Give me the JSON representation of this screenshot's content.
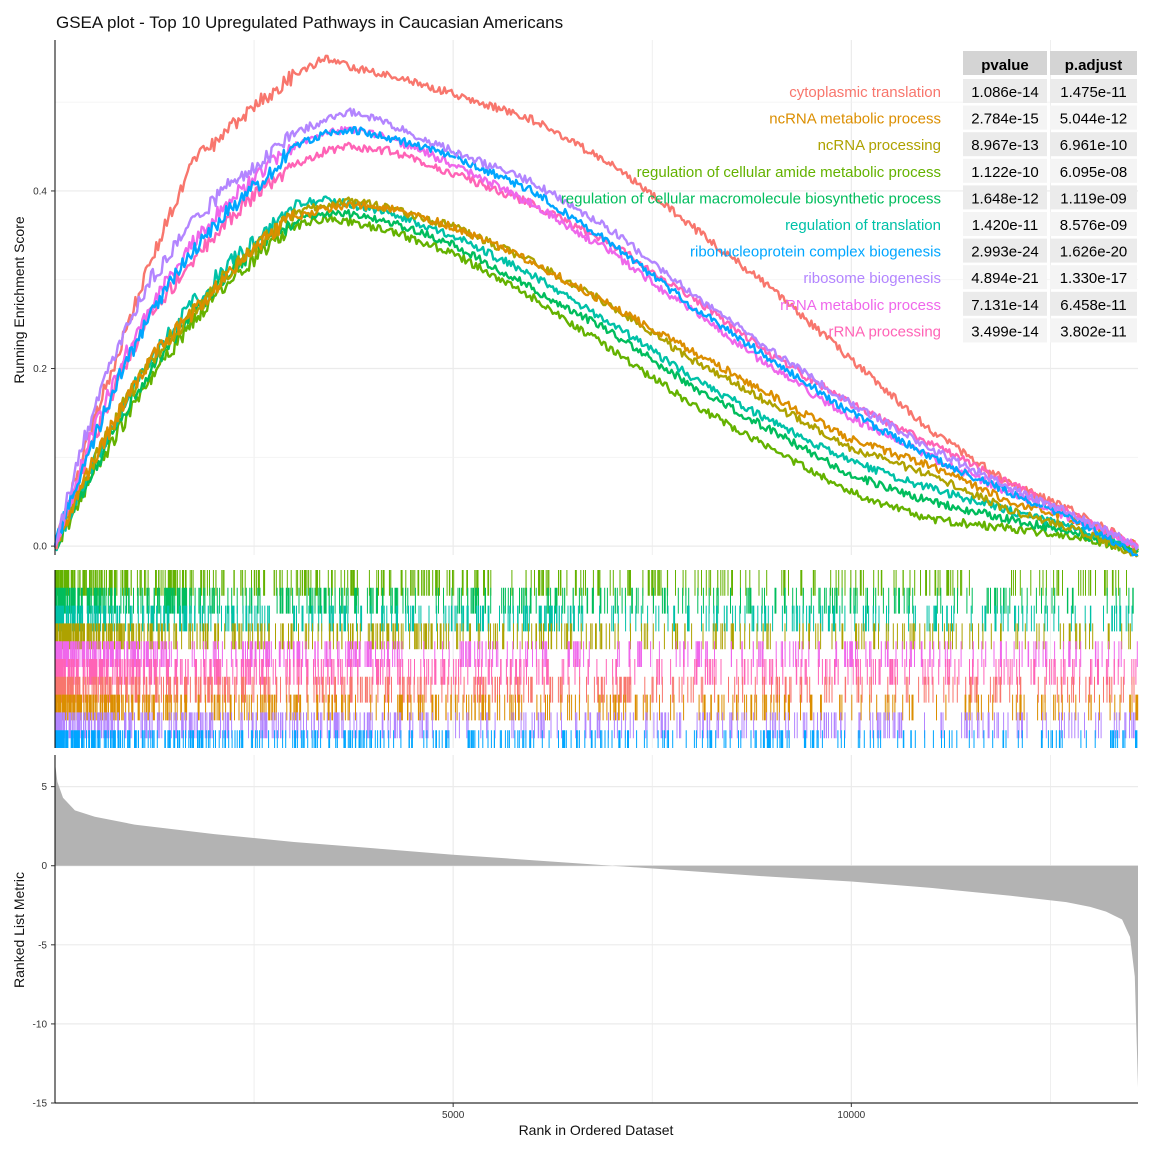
{
  "chart_data": {
    "type": "line",
    "title": "GSEA plot - Top 10 Upregulated Pathways in Caucasian Americans",
    "xlabel": "Rank in Ordered Dataset",
    "ylabel_top": "Running Enrichment Score",
    "ylabel_bottom": "Ranked List Metric",
    "xlim": [
      0,
      13600
    ],
    "x_ticks": [
      5000,
      10000
    ],
    "x_tick_labels": [
      "5000",
      "10000"
    ],
    "ylim_top": [
      -0.01,
      0.57
    ],
    "y_ticks_top": [
      0.0,
      0.2,
      0.4
    ],
    "y_tick_labels_top": [
      "0.0",
      "0.2",
      "0.4"
    ],
    "ylim_bottom": [
      -15,
      7
    ],
    "y_ticks_bottom": [
      5,
      0,
      -5,
      -10,
      -15
    ],
    "y_tick_labels_bottom": [
      "5",
      "0",
      "-5",
      "-10",
      "-15"
    ],
    "grid": true,
    "table_headers": [
      "pvalue",
      "p.adjust"
    ],
    "series": [
      {
        "name": "cytoplasmic translation",
        "color": "#F8766D",
        "pvalue": "1.086e-14",
        "padjust": "1.475e-11",
        "x": [
          0,
          150,
          400,
          800,
          1200,
          1700,
          2200,
          2700,
          3000,
          3400,
          3700,
          4200,
          5000,
          6000,
          7000,
          8000,
          9000,
          10000,
          11000,
          12000,
          12800,
          13600
        ],
        "y": [
          0.0,
          0.04,
          0.12,
          0.22,
          0.32,
          0.43,
          0.47,
          0.51,
          0.53,
          0.55,
          0.54,
          0.53,
          0.51,
          0.48,
          0.43,
          0.36,
          0.29,
          0.21,
          0.13,
          0.07,
          0.04,
          0.0
        ]
      },
      {
        "name": "ncRNA metabolic process",
        "color": "#DB8E00",
        "pvalue": "2.784e-15",
        "padjust": "5.044e-12",
        "x": [
          0,
          150,
          400,
          800,
          1200,
          1700,
          2200,
          2700,
          3000,
          3400,
          3700,
          4200,
          5000,
          6000,
          7000,
          8000,
          9000,
          10000,
          11000,
          12000,
          12800,
          13600
        ],
        "y": [
          0.0,
          0.03,
          0.08,
          0.15,
          0.21,
          0.26,
          0.31,
          0.35,
          0.37,
          0.38,
          0.385,
          0.38,
          0.36,
          0.32,
          0.27,
          0.22,
          0.17,
          0.12,
          0.09,
          0.05,
          0.03,
          0.0
        ]
      },
      {
        "name": "ncRNA processing",
        "color": "#AEA200",
        "pvalue": "8.967e-13",
        "padjust": "6.961e-10",
        "x": [
          0,
          150,
          400,
          800,
          1200,
          1700,
          2200,
          2700,
          3000,
          3400,
          3700,
          4200,
          5000,
          6000,
          7000,
          8000,
          9000,
          10000,
          11000,
          12000,
          12800,
          13600
        ],
        "y": [
          0.0,
          0.03,
          0.08,
          0.15,
          0.21,
          0.26,
          0.31,
          0.35,
          0.375,
          0.385,
          0.39,
          0.38,
          0.36,
          0.32,
          0.27,
          0.21,
          0.16,
          0.11,
          0.08,
          0.04,
          0.02,
          -0.01
        ]
      },
      {
        "name": "regulation of cellular amide metabolic process",
        "color": "#64B200",
        "pvalue": "1.122e-10",
        "padjust": "6.095e-08",
        "x": [
          0,
          150,
          400,
          800,
          1200,
          1700,
          2200,
          2700,
          3000,
          3400,
          3700,
          4200,
          5000,
          6000,
          7000,
          8000,
          9000,
          10000,
          11000,
          12000,
          12800,
          13600
        ],
        "y": [
          0.0,
          0.02,
          0.07,
          0.13,
          0.19,
          0.25,
          0.3,
          0.34,
          0.36,
          0.37,
          0.365,
          0.355,
          0.33,
          0.28,
          0.22,
          0.16,
          0.11,
          0.06,
          0.03,
          0.02,
          0.01,
          -0.005
        ]
      },
      {
        "name": "regulation of cellular macromolecule biosynthetic process",
        "color": "#00BD5C",
        "pvalue": "1.648e-12",
        "padjust": "1.119e-09",
        "x": [
          0,
          150,
          400,
          800,
          1200,
          1700,
          2200,
          2700,
          3000,
          3400,
          3700,
          4200,
          5000,
          6000,
          7000,
          8000,
          9000,
          10000,
          11000,
          12000,
          12800,
          13600
        ],
        "y": [
          0.0,
          0.03,
          0.07,
          0.14,
          0.2,
          0.26,
          0.31,
          0.345,
          0.365,
          0.375,
          0.375,
          0.365,
          0.34,
          0.29,
          0.24,
          0.18,
          0.13,
          0.08,
          0.05,
          0.03,
          0.015,
          -0.005
        ]
      },
      {
        "name": "regulation of translation",
        "color": "#00C1A7",
        "pvalue": "1.420e-11",
        "padjust": "8.576e-09",
        "x": [
          0,
          150,
          400,
          800,
          1200,
          1700,
          2200,
          2700,
          3000,
          3400,
          3700,
          4200,
          5000,
          6000,
          7000,
          8000,
          9000,
          10000,
          11000,
          12000,
          12800,
          13600
        ],
        "y": [
          0.0,
          0.03,
          0.08,
          0.15,
          0.21,
          0.27,
          0.32,
          0.36,
          0.385,
          0.39,
          0.385,
          0.375,
          0.35,
          0.305,
          0.25,
          0.19,
          0.14,
          0.095,
          0.065,
          0.04,
          0.02,
          0.0
        ]
      },
      {
        "name": "ribonucleoprotein complex biogenesis",
        "color": "#00A6FF",
        "pvalue": "2.993e-24",
        "padjust": "1.626e-20",
        "x": [
          0,
          150,
          400,
          800,
          1200,
          1700,
          2200,
          2700,
          3000,
          3400,
          3700,
          4200,
          5000,
          6000,
          7000,
          8000,
          9000,
          10000,
          11000,
          12000,
          12800,
          13600
        ],
        "y": [
          0.0,
          0.04,
          0.1,
          0.19,
          0.26,
          0.33,
          0.38,
          0.42,
          0.45,
          0.465,
          0.47,
          0.46,
          0.44,
          0.4,
          0.34,
          0.27,
          0.21,
          0.15,
          0.1,
          0.06,
          0.03,
          -0.01
        ]
      },
      {
        "name": "ribosome biogenesis",
        "color": "#B385FF",
        "pvalue": "4.894e-21",
        "padjust": "1.330e-17",
        "x": [
          0,
          150,
          400,
          800,
          1200,
          1700,
          2200,
          2700,
          3000,
          3400,
          3700,
          4200,
          5000,
          6000,
          7000,
          8000,
          9000,
          10000,
          11000,
          12000,
          12800,
          13600
        ],
        "y": [
          0.0,
          0.05,
          0.13,
          0.23,
          0.3,
          0.36,
          0.41,
          0.44,
          0.465,
          0.48,
          0.49,
          0.475,
          0.445,
          0.41,
          0.355,
          0.285,
          0.22,
          0.16,
          0.11,
          0.065,
          0.035,
          0.0
        ]
      },
      {
        "name": "rRNA metabolic process",
        "color": "#EF67EB",
        "pvalue": "7.131e-14",
        "padjust": "6.458e-11",
        "x": [
          0,
          150,
          400,
          800,
          1200,
          1700,
          2200,
          2700,
          3000,
          3400,
          3700,
          4200,
          5000,
          6000,
          7000,
          8000,
          9000,
          10000,
          11000,
          12000,
          12800,
          13600
        ],
        "y": [
          0.0,
          0.04,
          0.11,
          0.2,
          0.27,
          0.34,
          0.39,
          0.43,
          0.45,
          0.465,
          0.47,
          0.46,
          0.43,
          0.385,
          0.33,
          0.265,
          0.2,
          0.145,
          0.1,
          0.06,
          0.03,
          0.0
        ]
      },
      {
        "name": "rRNA processing",
        "color": "#FF63B6",
        "pvalue": "3.499e-14",
        "padjust": "3.802e-11",
        "x": [
          0,
          150,
          400,
          800,
          1200,
          1700,
          2200,
          2700,
          3000,
          3400,
          3700,
          4200,
          5000,
          6000,
          7000,
          8000,
          9000,
          10000,
          11000,
          12000,
          12800,
          13600
        ],
        "y": [
          0.0,
          0.04,
          0.1,
          0.19,
          0.26,
          0.32,
          0.37,
          0.41,
          0.43,
          0.445,
          0.45,
          0.445,
          0.42,
          0.385,
          0.34,
          0.28,
          0.215,
          0.16,
          0.115,
          0.07,
          0.035,
          0.0
        ]
      }
    ],
    "ranked_metric": {
      "x": [
        0,
        30,
        100,
        250,
        500,
        1000,
        2000,
        3000,
        4000,
        5000,
        6000,
        7000,
        8000,
        9000,
        10000,
        11000,
        12000,
        12700,
        13000,
        13200,
        13400,
        13500,
        13560,
        13600
      ],
      "y": [
        6.5,
        5.3,
        4.3,
        3.5,
        3.1,
        2.6,
        2.0,
        1.5,
        1.1,
        0.7,
        0.35,
        0.0,
        -0.35,
        -0.7,
        -1.0,
        -1.4,
        -1.9,
        -2.3,
        -2.6,
        -2.9,
        -3.4,
        -4.5,
        -7.0,
        -14.0
      ]
    }
  }
}
